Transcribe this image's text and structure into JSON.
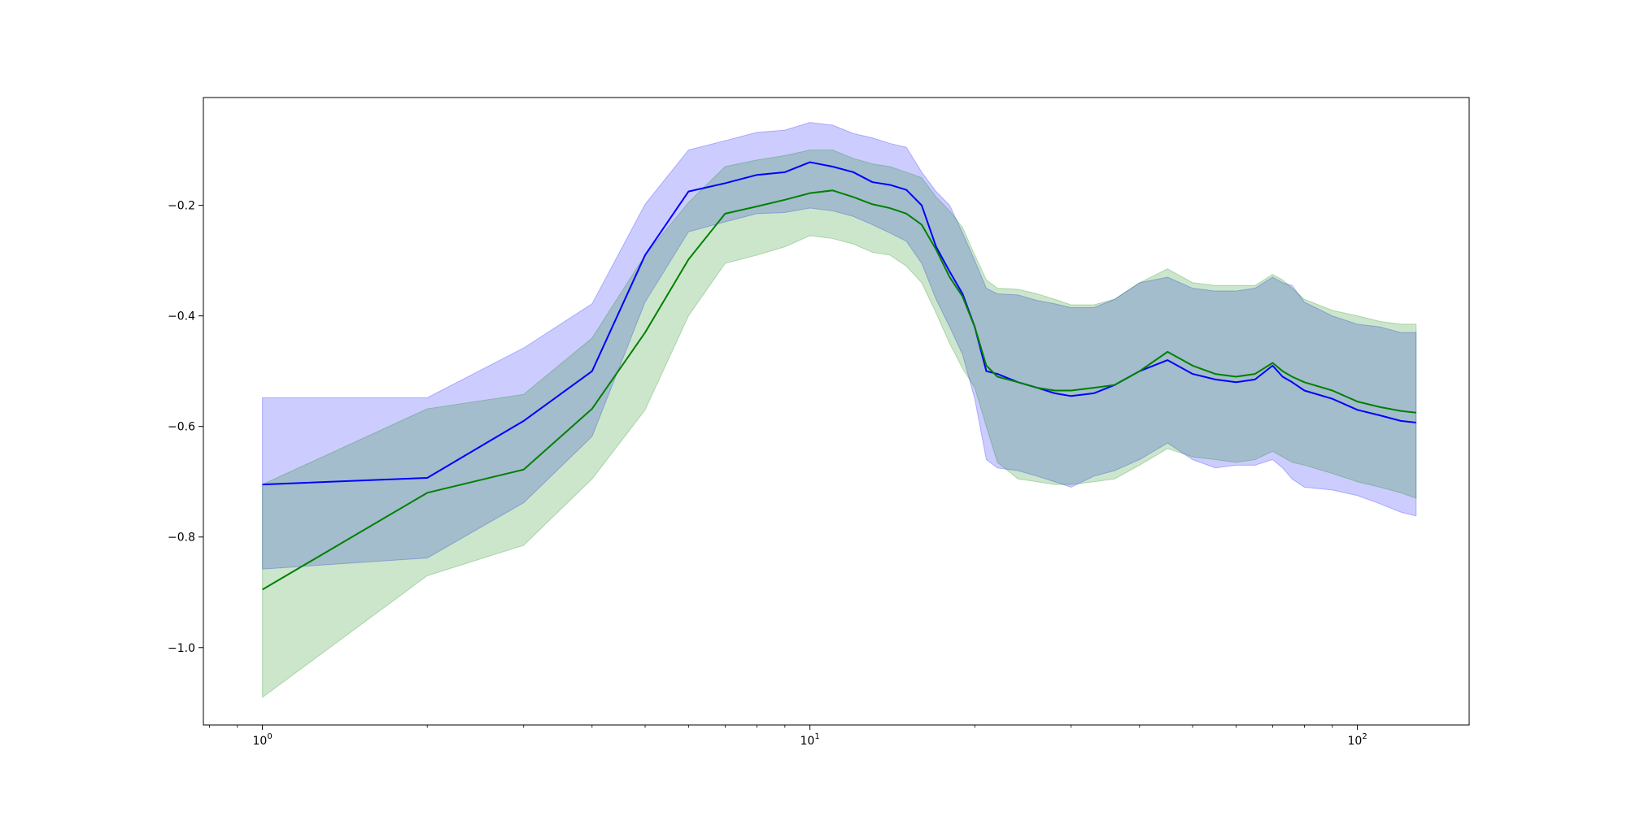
{
  "chart_data": {
    "type": "line",
    "title": "",
    "xlabel": "",
    "ylabel": "",
    "xscale": "log",
    "xlim": [
      0.78,
      160
    ],
    "ylim": [
      -1.14,
      -0.005
    ],
    "grid": false,
    "legend": "none",
    "y_ticks": [
      -1.0,
      -0.8,
      -0.6,
      -0.4,
      -0.2
    ],
    "y_tick_labels": [
      "−1.0",
      "−0.8",
      "−0.6",
      "−0.4",
      "−0.2"
    ],
    "x_ticks": [
      1,
      10,
      100
    ],
    "x_tick_labels": [
      {
        "base": "10",
        "exp": "0"
      },
      {
        "base": "10",
        "exp": "1"
      },
      {
        "base": "10",
        "exp": "2"
      }
    ],
    "series": [
      {
        "color": "#0000ff",
        "band_color": "#0000ff",
        "band_opacity": 0.2,
        "x": [
          1,
          2,
          3,
          4,
          5,
          6,
          7,
          8,
          9,
          10,
          11,
          12,
          13,
          14,
          15,
          16,
          17,
          18,
          19,
          20,
          21,
          22,
          24,
          26,
          28,
          30,
          33,
          36,
          40,
          45,
          50,
          55,
          60,
          65,
          70,
          73,
          76,
          80,
          90,
          100,
          110,
          120,
          128
        ],
        "y": [
          -0.705,
          -0.693,
          -0.59,
          -0.5,
          -0.29,
          -0.175,
          -0.16,
          -0.145,
          -0.14,
          -0.122,
          -0.13,
          -0.14,
          -0.158,
          -0.163,
          -0.172,
          -0.2,
          -0.275,
          -0.32,
          -0.36,
          -0.42,
          -0.5,
          -0.505,
          -0.52,
          -0.53,
          -0.54,
          -0.545,
          -0.54,
          -0.525,
          -0.5,
          -0.48,
          -0.505,
          -0.515,
          -0.52,
          -0.515,
          -0.49,
          -0.51,
          -0.52,
          -0.535,
          -0.55,
          -0.57,
          -0.58,
          -0.59,
          -0.593
        ],
        "upper": [
          -0.548,
          -0.548,
          -0.458,
          -0.378,
          -0.198,
          -0.1,
          -0.083,
          -0.068,
          -0.064,
          -0.05,
          -0.055,
          -0.07,
          -0.078,
          -0.088,
          -0.095,
          -0.14,
          -0.175,
          -0.2,
          -0.25,
          -0.3,
          -0.35,
          -0.36,
          -0.362,
          -0.372,
          -0.378,
          -0.385,
          -0.385,
          -0.37,
          -0.34,
          -0.33,
          -0.35,
          -0.355,
          -0.355,
          -0.35,
          -0.33,
          -0.34,
          -0.345,
          -0.375,
          -0.4,
          -0.415,
          -0.42,
          -0.43,
          -0.43
        ],
        "lower": [
          -0.858,
          -0.838,
          -0.738,
          -0.618,
          -0.375,
          -0.248,
          -0.23,
          -0.215,
          -0.213,
          -0.205,
          -0.21,
          -0.22,
          -0.235,
          -0.25,
          -0.265,
          -0.305,
          -0.37,
          -0.42,
          -0.47,
          -0.55,
          -0.66,
          -0.675,
          -0.68,
          -0.69,
          -0.7,
          -0.71,
          -0.69,
          -0.68,
          -0.66,
          -0.63,
          -0.66,
          -0.675,
          -0.67,
          -0.67,
          -0.66,
          -0.675,
          -0.695,
          -0.71,
          -0.715,
          -0.725,
          -0.74,
          -0.755,
          -0.762
        ]
      },
      {
        "color": "#008000",
        "band_color": "#008000",
        "band_opacity": 0.2,
        "x": [
          1,
          2,
          3,
          4,
          5,
          6,
          7,
          8,
          9,
          10,
          11,
          12,
          13,
          14,
          15,
          16,
          17,
          18,
          19,
          20,
          21,
          22,
          24,
          26,
          28,
          30,
          33,
          36,
          40,
          45,
          50,
          55,
          60,
          65,
          70,
          73,
          76,
          80,
          90,
          100,
          110,
          120,
          128
        ],
        "y": [
          -0.895,
          -0.72,
          -0.678,
          -0.568,
          -0.43,
          -0.298,
          -0.215,
          -0.202,
          -0.19,
          -0.178,
          -0.173,
          -0.185,
          -0.198,
          -0.205,
          -0.215,
          -0.235,
          -0.28,
          -0.33,
          -0.365,
          -0.42,
          -0.49,
          -0.51,
          -0.52,
          -0.53,
          -0.535,
          -0.535,
          -0.53,
          -0.525,
          -0.5,
          -0.465,
          -0.49,
          -0.505,
          -0.51,
          -0.505,
          -0.485,
          -0.5,
          -0.51,
          -0.52,
          -0.535,
          -0.555,
          -0.565,
          -0.572,
          -0.575
        ],
        "upper": [
          -0.705,
          -0.568,
          -0.542,
          -0.44,
          -0.29,
          -0.195,
          -0.13,
          -0.118,
          -0.11,
          -0.1,
          -0.1,
          -0.115,
          -0.125,
          -0.13,
          -0.14,
          -0.15,
          -0.185,
          -0.21,
          -0.24,
          -0.29,
          -0.335,
          -0.35,
          -0.352,
          -0.36,
          -0.37,
          -0.38,
          -0.38,
          -0.37,
          -0.34,
          -0.315,
          -0.34,
          -0.345,
          -0.345,
          -0.345,
          -0.325,
          -0.335,
          -0.35,
          -0.37,
          -0.39,
          -0.4,
          -0.41,
          -0.415,
          -0.415
        ],
        "lower": [
          -1.09,
          -0.87,
          -0.815,
          -0.695,
          -0.57,
          -0.4,
          -0.305,
          -0.29,
          -0.275,
          -0.255,
          -0.26,
          -0.27,
          -0.285,
          -0.29,
          -0.31,
          -0.34,
          -0.395,
          -0.45,
          -0.495,
          -0.53,
          -0.6,
          -0.665,
          -0.695,
          -0.7,
          -0.705,
          -0.705,
          -0.7,
          -0.695,
          -0.67,
          -0.64,
          -0.655,
          -0.66,
          -0.665,
          -0.66,
          -0.645,
          -0.655,
          -0.665,
          -0.67,
          -0.685,
          -0.7,
          -0.71,
          -0.72,
          -0.73
        ]
      }
    ]
  }
}
